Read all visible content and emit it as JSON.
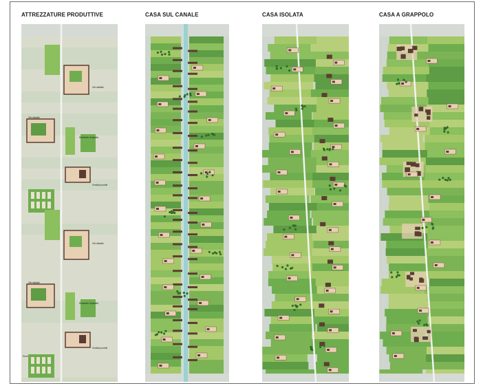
{
  "columns": [
    {
      "title": "ATTREZZATURE PRODUTTIVE",
      "annotations": {
        "orti_didattici": "Orti didattici",
        "ricettivita_ospitalita": "Ricettività Ospitalità",
        "vendita_prodotti": "Vendita prodotti",
        "serre": "Serre"
      }
    },
    {
      "title": "CASA SUL CANALE"
    },
    {
      "title": "CASA ISOLATA"
    },
    {
      "title": "CASA A GRAPPOLO"
    }
  ],
  "colors": {
    "field_greens": [
      "#6fae4e",
      "#8cbf5d",
      "#a4c867",
      "#5e9c45",
      "#b7cf7a",
      "#7cb455"
    ],
    "canal": "#9fd0cf",
    "road": "#f4f4f4",
    "building": "#5b3d33",
    "house_plot": "#e8d0b4",
    "gray_band": "#d5dad5",
    "tree": "#2f6b2a"
  }
}
